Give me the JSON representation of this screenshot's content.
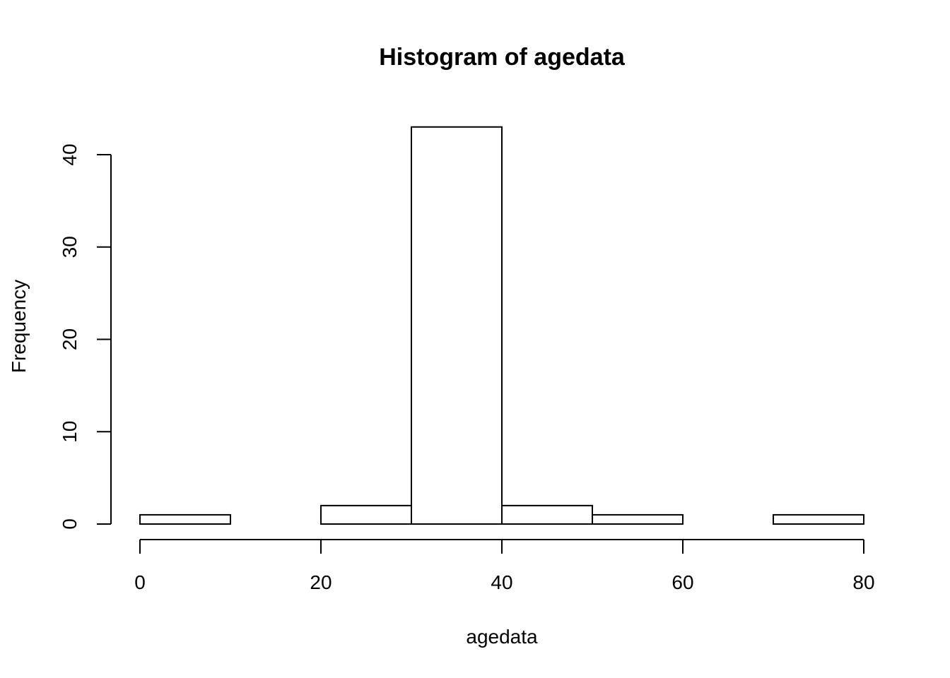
{
  "chart_data": {
    "type": "bar",
    "title": "Histogram of agedata",
    "xlabel": "agedata",
    "ylabel": "Frequency",
    "bins": [
      {
        "from": 0,
        "to": 10,
        "count": 1
      },
      {
        "from": 10,
        "to": 20,
        "count": 0
      },
      {
        "from": 20,
        "to": 30,
        "count": 2
      },
      {
        "from": 30,
        "to": 40,
        "count": 43
      },
      {
        "from": 40,
        "to": 50,
        "count": 2
      },
      {
        "from": 50,
        "to": 60,
        "count": 1
      },
      {
        "from": 60,
        "to": 70,
        "count": 0
      },
      {
        "from": 70,
        "to": 80,
        "count": 1
      }
    ],
    "xlim": [
      0,
      80
    ],
    "ylim": [
      0,
      43
    ],
    "x_ticks": [
      0,
      20,
      40,
      60,
      80
    ],
    "y_ticks": [
      0,
      10,
      20,
      30,
      40
    ],
    "grid": false,
    "legend": "none"
  }
}
